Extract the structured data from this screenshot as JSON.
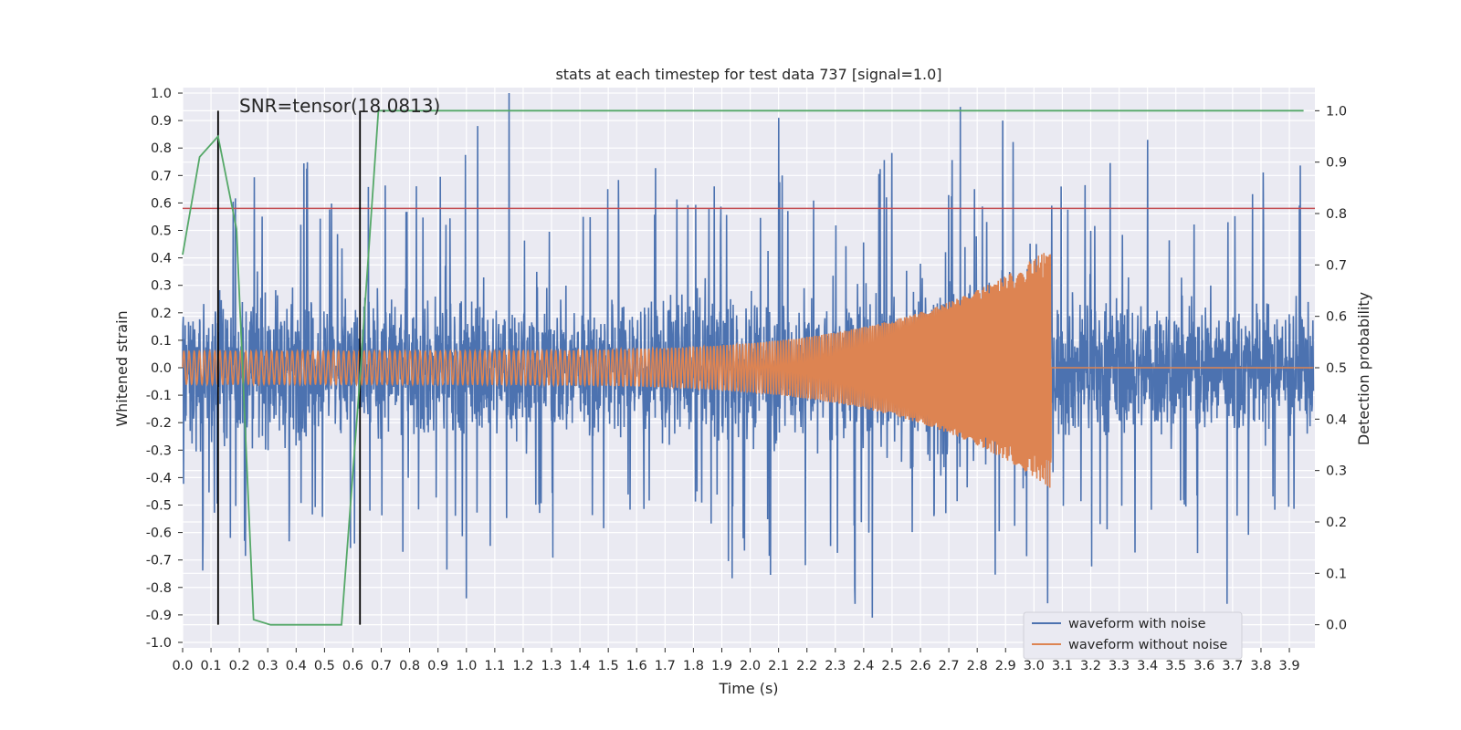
{
  "chart_data": {
    "type": "line",
    "title": "stats at each timestep for test data 737 [signal=1.0]",
    "xlabel": "Time (s)",
    "ylabel": "Whitened strain",
    "ylabel_right": "Detection probability",
    "xlim": [
      0.0,
      3.99
    ],
    "ylim": [
      -1.02,
      1.02
    ],
    "ylim_right": [
      -0.045,
      1.045
    ],
    "x_ticks": [
      "0.0",
      "0.1",
      "0.2",
      "0.3",
      "0.4",
      "0.5",
      "0.6",
      "0.7",
      "0.8",
      "0.9",
      "1.0",
      "1.1",
      "1.2",
      "1.3",
      "1.4",
      "1.5",
      "1.6",
      "1.7",
      "1.8",
      "1.9",
      "2.0",
      "2.1",
      "2.2",
      "2.3",
      "2.4",
      "2.5",
      "2.6",
      "2.7",
      "2.8",
      "2.9",
      "3.0",
      "3.1",
      "3.2",
      "3.3",
      "3.4",
      "3.5",
      "3.6",
      "3.7",
      "3.8",
      "3.9"
    ],
    "y_ticks": [
      "1.0",
      "0.9",
      "0.8",
      "0.7",
      "0.6",
      "0.5",
      "0.4",
      "0.3",
      "0.2",
      "0.1",
      "0.0",
      "-0.1",
      "-0.2",
      "-0.3",
      "-0.4",
      "-0.5",
      "-0.6",
      "-0.7",
      "-0.8",
      "-0.9",
      "-1.0"
    ],
    "y_ticks_right": [
      "1.0",
      "0.9",
      "0.8",
      "0.7",
      "0.6",
      "0.5",
      "0.4",
      "0.3",
      "0.2",
      "0.1",
      "0.0"
    ],
    "annotation": "SNR=tensor(18.0813)",
    "threshold_line": {
      "y": 0.81,
      "color": "#c44e52"
    },
    "vertical_markers": [
      0.125,
      0.625
    ],
    "noise_waveform": {
      "name": "waveform with noise",
      "color": "#4c72b0",
      "baseline_amplitude": 0.2,
      "spike_peaks": [
        {
          "x": 1.04,
          "y": 0.88
        },
        {
          "x": 1.15,
          "y": 1.0
        },
        {
          "x": 2.1,
          "y": 0.91
        },
        {
          "x": 2.74,
          "y": 0.95
        },
        {
          "x": 2.89,
          "y": 0.9
        },
        {
          "x": 3.4,
          "y": 0.83
        },
        {
          "x": 2.37,
          "y": -0.86
        },
        {
          "x": 2.43,
          "y": -0.91
        },
        {
          "x": 3.68,
          "y": -0.86
        },
        {
          "x": 1.0,
          "y": -0.84
        }
      ]
    },
    "clean_waveform": {
      "name": "waveform without noise",
      "color": "#dd8452",
      "start_amplitude": 0.06,
      "peak_amplitude": 0.44,
      "merger_time": 3.06,
      "start_cycles_per_second": 55,
      "end_cycles_per_second": 270
    },
    "probability": {
      "name": "detection probability",
      "color": "#55a868",
      "x": [
        0.0,
        0.06,
        0.125,
        0.19,
        0.25,
        0.31,
        0.56,
        0.625,
        0.69,
        3.95
      ],
      "y": [
        0.72,
        0.91,
        0.95,
        0.77,
        0.01,
        0.0,
        0.0,
        0.48,
        1.0,
        1.0
      ]
    },
    "legend": {
      "position": "bottom-right",
      "entries": [
        {
          "label": "waveform with noise",
          "color": "#4c72b0"
        },
        {
          "label": "waveform without noise",
          "color": "#dd8452"
        }
      ]
    },
    "grid": true,
    "background": "#eaeaf2"
  }
}
